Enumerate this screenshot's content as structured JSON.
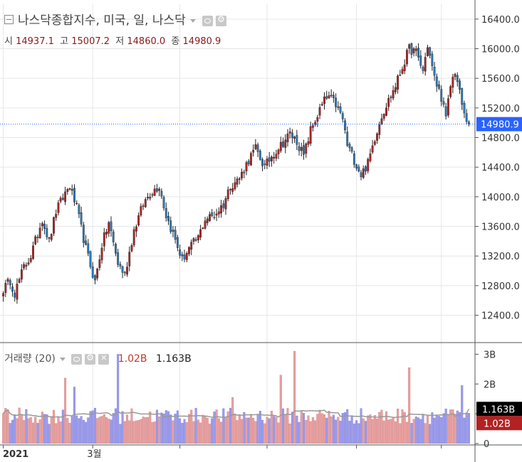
{
  "header": {
    "title": "나스닥종합지수, 미국, 일, 나스닥",
    "ohlc": [
      {
        "label": "시",
        "value": "14937.1"
      },
      {
        "label": "고",
        "value": "15007.2"
      },
      {
        "label": "저",
        "value": "14860.0"
      },
      {
        "label": "종",
        "value": "14980.9"
      }
    ]
  },
  "volume_legend": {
    "title": "거래량 (20)",
    "value_red": "1.02B",
    "value_black": "1.163B"
  },
  "colors": {
    "up": "#b22222",
    "down": "#2a7ab8",
    "vol_up": "#e8a0a0",
    "vol_down": "#9b9bea",
    "ma": "#999999",
    "last_price_bg": "#2962ff",
    "grid": "#e6e6e6"
  },
  "chart_data": [
    {
      "type": "candlestick",
      "title": "나스닥종합지수, 미국, 일, 나스닥",
      "y_ticks": [
        "16400.0",
        "16000.0",
        "15600.0",
        "15200.0",
        "14800.0",
        "14400.0",
        "14000.0",
        "13600.0",
        "13200.0",
        "12800.0",
        "12400.0"
      ],
      "ylim": [
        12050,
        16600
      ],
      "last_price": 14980.9,
      "last_price_label": "14980.9",
      "x_labels": [
        {
          "label": "2021",
          "index": 0
        },
        {
          "label": "3월",
          "index": 39
        }
      ],
      "anchors": [
        [
          0,
          12750
        ],
        [
          3,
          12870
        ],
        [
          5,
          12700
        ],
        [
          9,
          13050
        ],
        [
          12,
          13200
        ],
        [
          17,
          13700
        ],
        [
          20,
          13400
        ],
        [
          23,
          13800
        ],
        [
          27,
          14050
        ],
        [
          29,
          14150
        ],
        [
          32,
          13850
        ],
        [
          36,
          13300
        ],
        [
          40,
          12850
        ],
        [
          43,
          13350
        ],
        [
          46,
          13650
        ],
        [
          50,
          13100
        ],
        [
          53,
          12950
        ],
        [
          57,
          13550
        ],
        [
          61,
          13900
        ],
        [
          64,
          14050
        ],
        [
          68,
          14150
        ],
        [
          71,
          13750
        ],
        [
          74,
          13500
        ],
        [
          78,
          13150
        ],
        [
          81,
          13300
        ],
        [
          85,
          13450
        ],
        [
          88,
          13700
        ],
        [
          92,
          13750
        ],
        [
          96,
          13900
        ],
        [
          99,
          14150
        ],
        [
          103,
          14250
        ],
        [
          107,
          14500
        ],
        [
          110,
          14650
        ],
        [
          114,
          14400
        ],
        [
          117,
          14550
        ],
        [
          121,
          14700
        ],
        [
          125,
          14850
        ],
        [
          128,
          14750
        ],
        [
          131,
          14550
        ],
        [
          134,
          14900
        ],
        [
          137,
          15100
        ],
        [
          140,
          15300
        ],
        [
          142,
          15350
        ],
        [
          145,
          15250
        ],
        [
          148,
          15050
        ],
        [
          150,
          14700
        ],
        [
          153,
          14500
        ],
        [
          156,
          14300
        ],
        [
          159,
          14450
        ],
        [
          162,
          14800
        ],
        [
          165,
          15100
        ],
        [
          168,
          15300
        ],
        [
          171,
          15500
        ],
        [
          174,
          15750
        ],
        [
          177,
          16000
        ],
        [
          180,
          15950
        ],
        [
          183,
          15700
        ],
        [
          185,
          16050
        ],
        [
          188,
          15600
        ],
        [
          191,
          15350
        ],
        [
          193,
          15050
        ],
        [
          195,
          15500
        ],
        [
          197,
          15700
        ],
        [
          199,
          15400
        ],
        [
          201,
          15100
        ],
        [
          203,
          14980.9
        ]
      ]
    },
    {
      "type": "bar",
      "title": "거래량 (20)",
      "y_ticks": [
        "3B",
        "2B",
        "1B",
        "0"
      ],
      "ylim": [
        0,
        3.2
      ],
      "ma_period": 20,
      "last_volume_label": "1.02B",
      "last_ma_label": "1.163B",
      "last_volume": 1.02,
      "last_ma": 1.163
    }
  ]
}
